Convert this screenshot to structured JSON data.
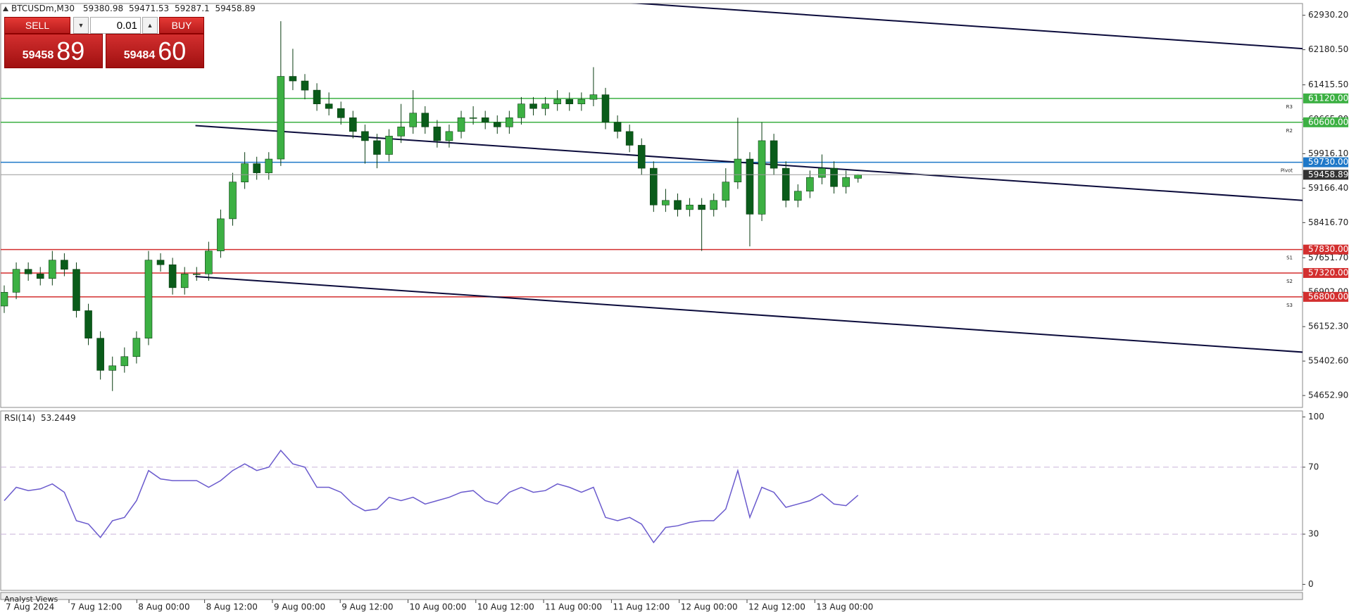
{
  "toolbar": {
    "symbol": "BTCUSDm,M30",
    "sell": "SELL",
    "buy": "BUY",
    "volume": 0.01,
    "bid_big": "59458",
    "bid_small": "89",
    "ask_big": "59484",
    "ask_small": "60"
  },
  "price_panel": {
    "ylim": [
      54409,
      63155
    ],
    "yticks": [
      {
        "value": 62930.2,
        "label": "62930.20"
      },
      {
        "value": 62180.5,
        "label": "62180.50"
      },
      {
        "value": 61415.5,
        "label": "61415.50"
      },
      {
        "value": 60665.8,
        "label": "60665.80"
      },
      {
        "value": 59916.1,
        "label": "59916.10"
      },
      {
        "value": 59166.4,
        "label": "59166.40"
      },
      {
        "value": 58416.7,
        "label": "58416.70"
      },
      {
        "value": 57651.7,
        "label": "57651.70"
      },
      {
        "value": 56902,
        "label": "56902.00"
      },
      {
        "value": 56152.3,
        "label": "56152.30"
      },
      {
        "value": 55402.6,
        "label": "55402.60"
      },
      {
        "value": 54652.9,
        "label": "54652.90"
      }
    ],
    "up_color": "#3cb043",
    "down_color": "#0a5c1a",
    "candles": {
      "open": [
        56600,
        56900,
        57400,
        57300,
        57200,
        57600,
        57400,
        56500,
        55900,
        55200,
        55300,
        55500,
        55900,
        57600,
        57500,
        57000,
        57300,
        57300,
        57800,
        58500,
        59300,
        59700,
        59500,
        59800,
        61600,
        61500,
        61300,
        61000,
        60900,
        60700,
        60400,
        60200,
        59900,
        60300,
        60500,
        60800,
        60500,
        60200,
        60400,
        60700,
        60700,
        60600,
        60500,
        60700,
        61000,
        60900,
        61000,
        61100,
        61000,
        61100,
        61200,
        60600,
        60400,
        60100,
        59600,
        58800,
        58900,
        58700,
        58800,
        58700,
        58900,
        59300,
        59800,
        58600,
        60200,
        59600,
        58900,
        59100,
        59400,
        59600,
        59200,
        59380.98
      ],
      "high": [
        57050,
        57550,
        57550,
        57450,
        57800,
        57750,
        57550,
        56650,
        56050,
        55500,
        55700,
        56050,
        57800,
        57750,
        57650,
        57450,
        57450,
        58000,
        58700,
        59500,
        59950,
        59850,
        59950,
        62800,
        62200,
        61650,
        61450,
        61250,
        61050,
        60850,
        60550,
        60350,
        60450,
        61000,
        61300,
        60950,
        60650,
        60550,
        60850,
        60950,
        60850,
        60750,
        60850,
        61150,
        61150,
        61150,
        61300,
        61250,
        61250,
        61800,
        61350,
        60750,
        60550,
        60250,
        59750,
        59150,
        59050,
        58950,
        58950,
        59050,
        59600,
        60700,
        59950,
        60600,
        60350,
        59750,
        59250,
        59550,
        59900,
        59750,
        59550,
        59471.53
      ],
      "low": [
        56450,
        56750,
        57150,
        57050,
        57050,
        57250,
        56350,
        55750,
        55000,
        54750,
        55150,
        55350,
        55750,
        57350,
        56850,
        56850,
        57150,
        57150,
        57650,
        58350,
        59150,
        59350,
        59350,
        59650,
        61300,
        61100,
        60850,
        60750,
        60550,
        60250,
        59700,
        59600,
        59750,
        60150,
        60350,
        60350,
        60050,
        60050,
        60250,
        60550,
        60450,
        60350,
        60350,
        60550,
        60750,
        60750,
        60850,
        60850,
        60850,
        60950,
        60450,
        60250,
        59950,
        59450,
        58650,
        58650,
        58550,
        58550,
        57800,
        58550,
        58750,
        59150,
        57900,
        58450,
        59450,
        58750,
        58750,
        58950,
        59250,
        59050,
        59050,
        59287.1
      ],
      "close": [
        56900,
        57400,
        57300,
        57200,
        57600,
        57400,
        56500,
        55900,
        55200,
        55300,
        55500,
        55900,
        57600,
        57500,
        57000,
        57300,
        57300,
        57800,
        58500,
        59300,
        59700,
        59500,
        59800,
        61600,
        61500,
        61300,
        61000,
        60900,
        60700,
        60400,
        60200,
        59900,
        60300,
        60500,
        60800,
        60500,
        60200,
        60400,
        60700,
        60700,
        60600,
        60500,
        60700,
        61000,
        60900,
        61000,
        61100,
        61000,
        61100,
        61200,
        60600,
        60400,
        60100,
        59600,
        58800,
        58900,
        58700,
        58800,
        58700,
        58900,
        59300,
        59800,
        58600,
        60200,
        59600,
        58900,
        59100,
        59400,
        59600,
        59200,
        59400,
        59458.89
      ]
    },
    "levels": [
      {
        "name": "R3",
        "value": 61120,
        "label": "61120.00",
        "color": "#3cb043"
      },
      {
        "name": "R2",
        "value": 60600,
        "label": "60600.00",
        "color": "#3cb043"
      },
      {
        "name": "Pivot",
        "value": 59730,
        "label": "59730.00",
        "color": "#1e78c8"
      },
      {
        "name": "S1",
        "value": 57830,
        "label": "57830.00",
        "color": "#d32f2f"
      },
      {
        "name": "S2",
        "value": 57320,
        "label": "57320.00",
        "color": "#d32f2f"
      },
      {
        "name": "S3",
        "value": 56800,
        "label": "56800.00",
        "color": "#d32f2f"
      }
    ],
    "trendlines": [
      {
        "from": [
          51.5,
          63212
        ],
        "to": [
          108.3,
          62198
        ]
      },
      {
        "from": [
          15.9,
          60528
        ],
        "to": [
          108.3,
          58895
        ]
      },
      {
        "from": [
          15.9,
          57243
        ],
        "to": [
          108.3,
          55591
        ]
      }
    ]
  },
  "rsi_panel": {
    "title": "RSI(14)",
    "ylim": [
      -3.6,
      103.6
    ],
    "yticks": [
      100,
      70,
      30,
      0
    ],
    "levels": [
      70,
      30
    ],
    "color": "#6a5acd",
    "values": [
      50,
      58,
      56,
      57,
      60,
      55,
      38,
      36,
      28,
      38,
      40,
      50,
      68,
      63,
      62,
      62,
      62,
      58,
      62,
      68,
      72,
      68,
      70,
      80,
      72,
      70,
      58,
      58,
      55,
      48,
      44,
      45,
      52,
      50,
      52,
      48,
      50,
      52,
      55,
      56,
      50,
      48,
      55,
      58,
      55,
      56,
      60,
      58,
      55,
      58,
      40,
      38,
      40,
      36,
      25,
      34,
      35,
      37,
      38,
      38,
      45,
      68,
      40,
      58,
      55,
      46,
      48,
      50,
      54,
      48,
      47,
      53.2449
    ]
  },
  "time_axis": {
    "labels": [
      "7 Aug 2024",
      "7 Aug 12:00",
      "8 Aug 00:00",
      "8 Aug 12:00",
      "9 Aug 00:00",
      "9 Aug 12:00",
      "10 Aug 00:00",
      "10 Aug 12:00",
      "11 Aug 00:00",
      "11 Aug 12:00",
      "12 Aug 00:00",
      "12 Aug 12:00",
      "13 Aug 00:00"
    ]
  },
  "footer": "Analyst Views"
}
